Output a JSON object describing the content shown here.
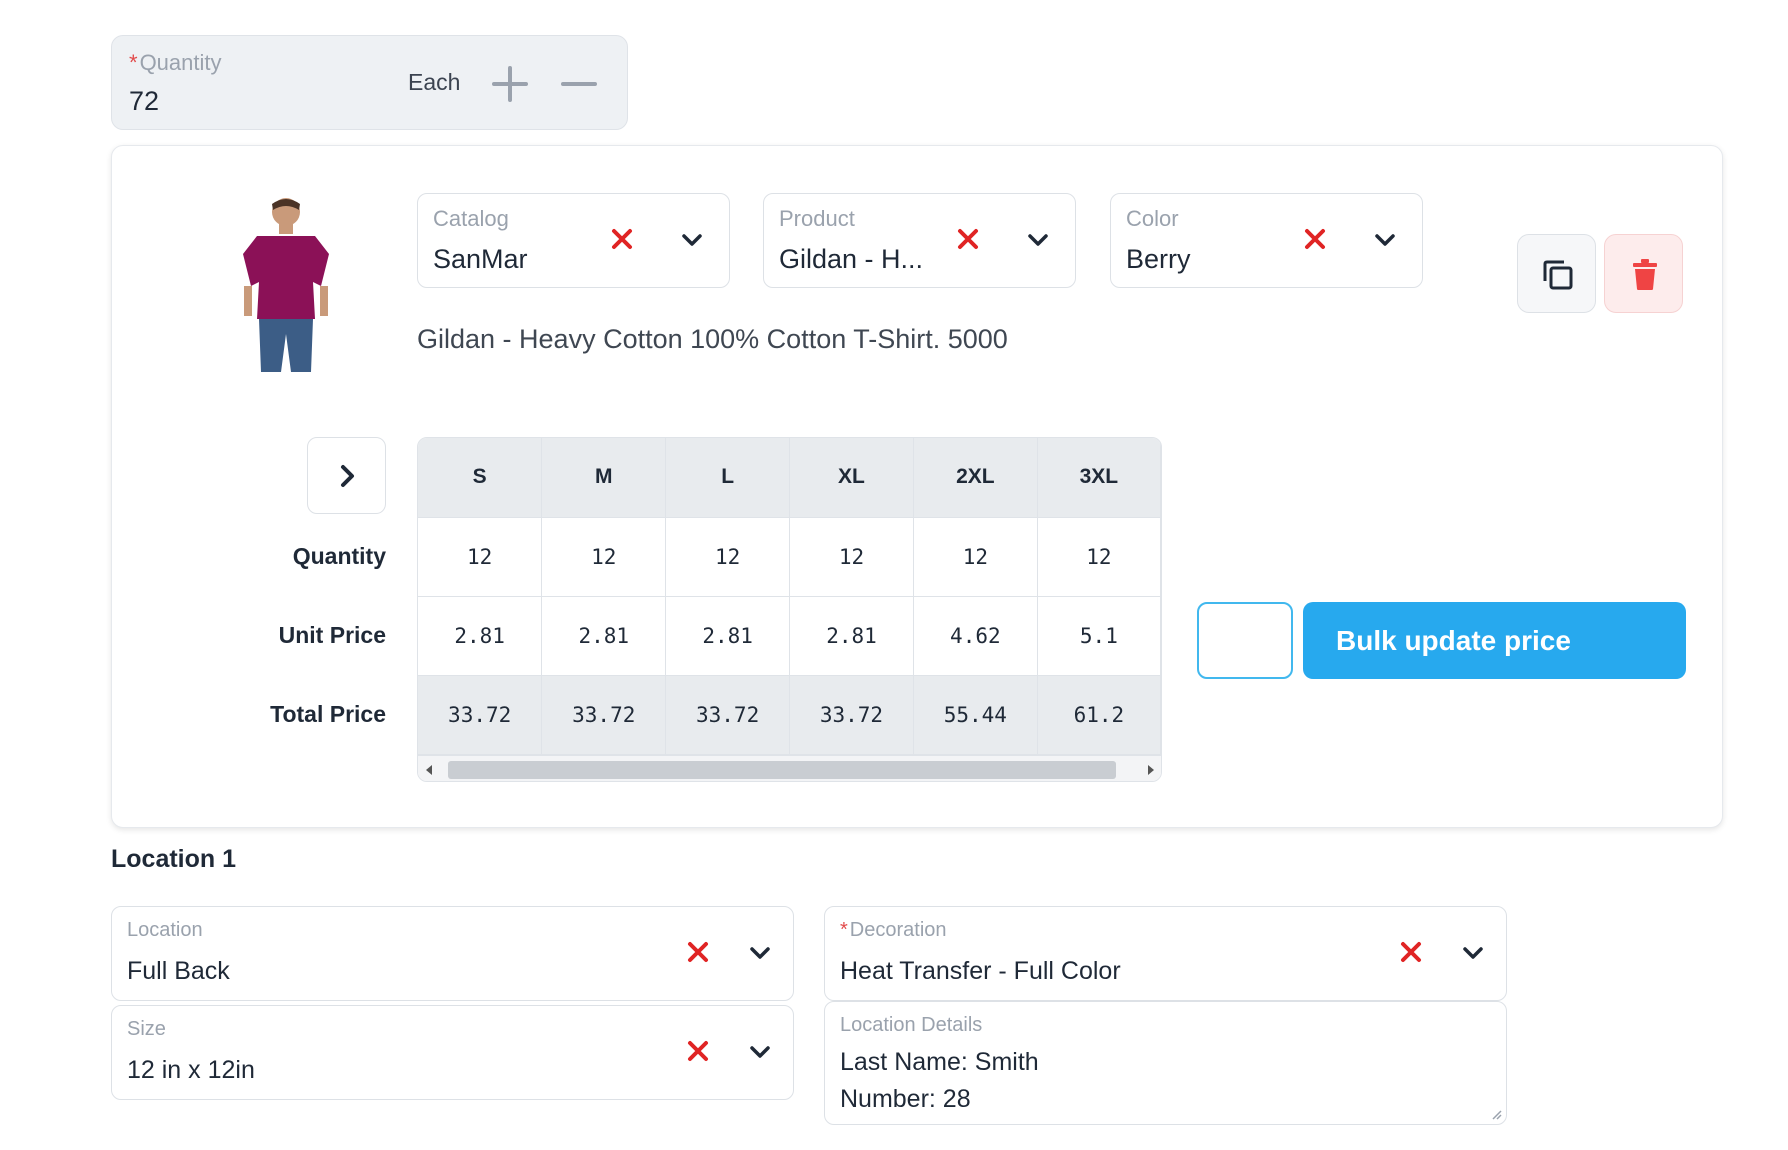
{
  "quantity": {
    "label": "Quantity",
    "required": true,
    "value": "72",
    "unit": "Each",
    "increment_icon": "plus-icon",
    "decrement_icon": "minus-icon"
  },
  "product_card": {
    "catalog": {
      "label": "Catalog",
      "value": "SanMar"
    },
    "product": {
      "label": "Product",
      "value": "Gildan - H..."
    },
    "color": {
      "label": "Color",
      "value": "Berry"
    },
    "description": "Gildan - Heavy Cotton 100% Cotton T-Shirt. 5000",
    "shirt_color": "#8b1157",
    "actions": {
      "duplicate_icon": "copy-icon",
      "delete_icon": "trash-icon"
    }
  },
  "size_table": {
    "row_labels": {
      "quantity": "Quantity",
      "unit_price": "Unit Price",
      "total_price": "Total Price"
    },
    "sizes": [
      "S",
      "M",
      "L",
      "XL",
      "2XL",
      "3XL"
    ],
    "quantities": [
      "12",
      "12",
      "12",
      "12",
      "12",
      "12"
    ],
    "unit_prices": [
      "2.81",
      "2.81",
      "2.81",
      "2.81",
      "4.62",
      "5.1"
    ],
    "total_prices": [
      "33.72",
      "33.72",
      "33.72",
      "33.72",
      "55.44",
      "61.2"
    ]
  },
  "bulk_update": {
    "input_value": "",
    "button_label": "Bulk update price"
  },
  "location": {
    "title": "Location 1",
    "location_field": {
      "label": "Location",
      "value": "Full Back"
    },
    "decoration_field": {
      "label": "Decoration",
      "required": true,
      "value": "Heat Transfer - Full Color"
    },
    "size_field": {
      "label": "Size",
      "value": "12 in x 12in"
    },
    "details": {
      "label": "Location Details",
      "lines": [
        "Last Name: Smith",
        "Number: 28"
      ]
    }
  },
  "colors": {
    "accent": "#27a9ee",
    "clear_x": "#e02424",
    "danger_bg": "#fdecec",
    "danger_icon": "#ef4444"
  }
}
